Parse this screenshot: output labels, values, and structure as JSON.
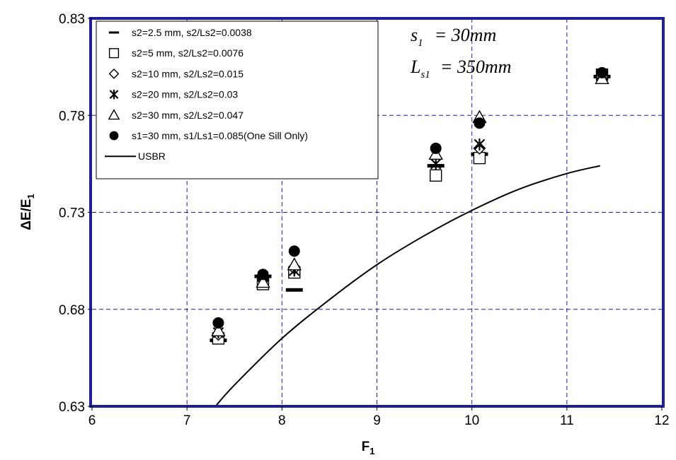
{
  "chart_data": {
    "type": "scatter",
    "title": "",
    "xlabel": "F",
    "xlabel_sub": "1",
    "ylabel": "ΔE/E",
    "ylabel_sub": "1",
    "xlim": [
      6,
      12
    ],
    "ylim": [
      0.63,
      0.83
    ],
    "x_ticks": [
      "6",
      "7",
      "8",
      "9",
      "10",
      "11",
      "12"
    ],
    "y_ticks": [
      "0.63",
      "0.68",
      "0.73",
      "0.78",
      "0.83"
    ],
    "grid": true,
    "legend_position": "top-left",
    "frame_color": "#1f1f99",
    "grid_color": "#1f1f99",
    "annotations": [
      {
        "var": "s",
        "sub": "1",
        "eq": "= 30mm"
      },
      {
        "var": "L",
        "sub": "s1",
        "eq": "= 350mm"
      }
    ],
    "series": [
      {
        "name": "s2=2.5 mm, s2/Ls2=0.0038",
        "marker": "dash",
        "x": [
          7.33,
          7.8,
          8.13,
          9.62,
          10.08,
          11.37
        ],
        "y": [
          0.664,
          0.697,
          0.69,
          0.754,
          0.76,
          0.8
        ]
      },
      {
        "name": "s2=5 mm, s2/Ls2=0.0076",
        "marker": "square",
        "x": [
          7.33,
          7.8,
          8.13,
          9.62,
          10.08,
          11.37
        ],
        "y": [
          0.665,
          0.693,
          0.699,
          0.749,
          0.758,
          0.801
        ]
      },
      {
        "name": "s2=10 mm, s2/Ls2=0.015",
        "marker": "diamond",
        "x": [
          7.33,
          7.8,
          8.13,
          9.62,
          10.08,
          11.37
        ],
        "y": [
          0.667,
          0.695,
          0.701,
          0.758,
          0.763,
          0.8
        ]
      },
      {
        "name": "s2=20 mm, s2/Ls2=0.03",
        "marker": "star",
        "x": [
          7.33,
          7.8,
          8.13,
          9.62,
          10.08,
          11.37
        ],
        "y": [
          0.668,
          0.697,
          0.7,
          0.755,
          0.765,
          0.801
        ]
      },
      {
        "name": "s2=30 mm, s2/Ls2=0.047",
        "marker": "triangle",
        "x": [
          7.33,
          7.8,
          8.13,
          9.62,
          10.08,
          11.37
        ],
        "y": [
          0.669,
          0.694,
          0.703,
          0.76,
          0.779,
          0.799
        ]
      },
      {
        "name": "s1=30 mm, s1/Ls1=0.085(One Sill Only)",
        "marker": "circle",
        "x": [
          7.33,
          7.8,
          8.13,
          9.62,
          10.08,
          11.37
        ],
        "y": [
          0.673,
          0.698,
          0.71,
          0.763,
          0.776,
          0.802
        ]
      },
      {
        "name": "USBR",
        "marker": "line",
        "x": [
          7.3,
          7.5,
          8.0,
          8.5,
          9.0,
          9.5,
          10.0,
          10.5,
          11.0,
          11.35
        ],
        "y": [
          0.63,
          0.641,
          0.665,
          0.685,
          0.703,
          0.718,
          0.731,
          0.742,
          0.75,
          0.754
        ]
      }
    ]
  }
}
